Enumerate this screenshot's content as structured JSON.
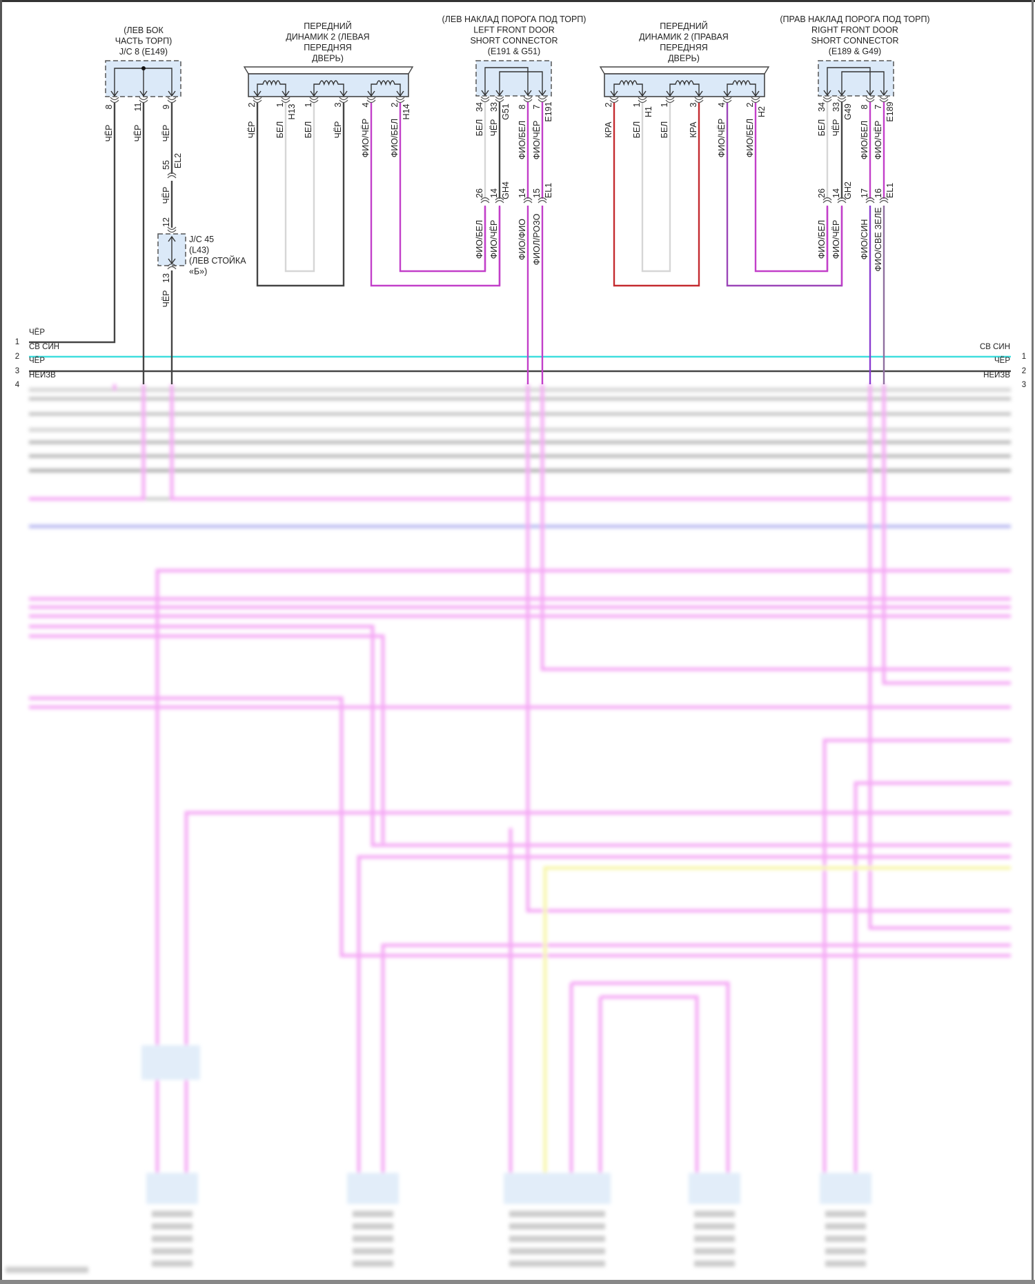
{
  "colors": {
    "black_wire": "#444444",
    "white_wire": "#d6d6d6",
    "violet_wire": "#c23fc9",
    "violet_dark_wire": "#9b45b8",
    "violet_blue_wire": "#8a3cd0",
    "violet_gray_wire": "#8f6f9f",
    "red_wire": "#c42a2f",
    "cyan_wire": "#3fdede",
    "connector_fill": "#dbe9f8"
  },
  "jc8": {
    "title": [
      "(ЛЕВ БОК",
      "ЧАСТЬ ТОРП)",
      "J/C 8 (E149)"
    ],
    "pins": [
      {
        "num": "8",
        "wire": "ЧЁР"
      },
      {
        "num": "11",
        "wire": "ЧЁР"
      },
      {
        "num": "9",
        "wire": "ЧЁР"
      }
    ]
  },
  "el2": {
    "code": "EL2",
    "pin": "55",
    "wire_below": "ЧЁР"
  },
  "jc45": {
    "label": [
      "J/C 45",
      "(L43)",
      "(ЛЕВ СТОЙКА",
      "«Б»)"
    ],
    "pin_top": "12",
    "pin_bottom": "13",
    "wire_below": "ЧЁР"
  },
  "speaker_left": {
    "title": [
      "ПЕРЕДНИЙ",
      "ДИНАМИК 2 (ЛЕВАЯ",
      "ПЕРЕДНЯЯ",
      "ДВЕРЬ)"
    ],
    "pins": [
      {
        "num": "2",
        "wire": "ЧЁР",
        "code": ""
      },
      {
        "num": "1",
        "wire": "БЕЛ",
        "code": "H13"
      },
      {
        "num": "1",
        "wire": "БЕЛ",
        "code": ""
      },
      {
        "num": "3",
        "wire": "ЧЁР",
        "code": ""
      },
      {
        "num": "4",
        "wire": "ФИО/ЧЁР",
        "code": ""
      },
      {
        "num": "2",
        "wire": "ФИО/БЕЛ",
        "code": "H14"
      }
    ]
  },
  "short_left": {
    "title": [
      "(ЛЕВ НАКЛАД ПОРОГА ПОД ТОРП)",
      "LEFT FRONT DOOR",
      "SHORT CONNECTOR",
      "(E191 & G51)"
    ],
    "pins": [
      {
        "num": "34",
        "wire": "БЕЛ",
        "code": "",
        "num_low": "26",
        "wire_low": "ФИО/БЕЛ",
        "code_low": ""
      },
      {
        "num": "33",
        "wire": "ЧЁР",
        "code": "G51",
        "num_low": "14",
        "wire_low": "ФИО/ЧЁР",
        "code_low": "GH4"
      },
      {
        "num": "8",
        "wire": "ФИО/БЕЛ",
        "code": "",
        "num_low": "14",
        "wire_low": "ФИО/ФИО",
        "code_low": ""
      },
      {
        "num": "7",
        "wire": "ФИО/ЧЁР",
        "code": "E191",
        "num_low": "15",
        "wire_low": "ФИОЛ/РОЗО",
        "code_low": "EL1"
      }
    ]
  },
  "speaker_right": {
    "title": [
      "ПЕРЕДНИЙ",
      "ДИНАМИК 2 (ПРАВАЯ",
      "ПЕРЕДНЯЯ",
      "ДВЕРЬ)"
    ],
    "pins": [
      {
        "num": "2",
        "wire": "КРА",
        "code": ""
      },
      {
        "num": "1",
        "wire": "БЕЛ",
        "code": "H1"
      },
      {
        "num": "1",
        "wire": "БЕЛ",
        "code": ""
      },
      {
        "num": "3",
        "wire": "КРА",
        "code": ""
      },
      {
        "num": "4",
        "wire": "ФИО/ЧЁР",
        "code": ""
      },
      {
        "num": "2",
        "wire": "ФИО/БЕЛ",
        "code": "H2"
      }
    ]
  },
  "short_right": {
    "title": [
      "(ПРАВ НАКЛАД ПОРОГА ПОД ТОРП)",
      "RIGHT FRONT DOOR",
      "SHORT CONNECTOR",
      "(E189 & G49)"
    ],
    "pins": [
      {
        "num": "34",
        "wire": "БЕЛ",
        "code": "",
        "num_low": "26",
        "wire_low": "ФИО/БЕЛ",
        "code_low": ""
      },
      {
        "num": "33",
        "wire": "ЧЁР",
        "code": "G49",
        "num_low": "14",
        "wire_low": "ФИО/ЧЁР",
        "code_low": "GH2"
      },
      {
        "num": "8",
        "wire": "ФИО/БЕЛ",
        "code": "",
        "num_low": "17",
        "wire_low": "ФИО/СИН",
        "code_low": ""
      },
      {
        "num": "7",
        "wire": "ФИО/ЧЁР",
        "code": "E189",
        "num_low": "16",
        "wire_low": "ФИО/СВЕ ЗЕЛЕ",
        "code_low": "EL1"
      }
    ]
  },
  "bus_left": [
    {
      "num": "1",
      "label": "ЧЁР"
    },
    {
      "num": "2",
      "label": "СВ СИН"
    },
    {
      "num": "3",
      "label": "ЧЁР"
    },
    {
      "num": "4",
      "label": "НЕИЗВ"
    }
  ],
  "bus_right": [
    {
      "num": "1",
      "label": "СВ СИН"
    },
    {
      "num": "2",
      "label": "ЧЁР"
    },
    {
      "num": "3",
      "label": "НЕИЗВ"
    }
  ]
}
